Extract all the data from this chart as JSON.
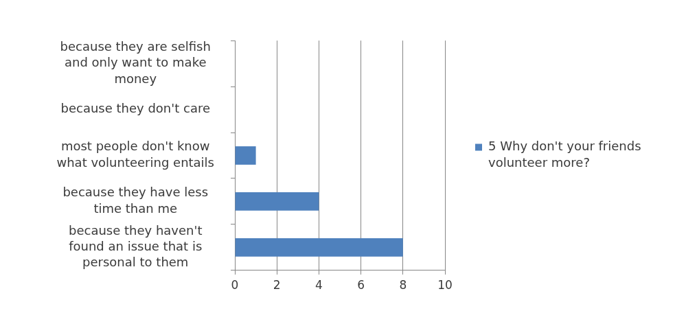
{
  "chart_data": {
    "type": "bar",
    "orientation": "horizontal",
    "categories": [
      "because they are selfish and only want to make money",
      "because they don't care",
      "most people don't know what volunteering entails",
      "because they have less time than me",
      "because they haven't found an issue that is personal to them"
    ],
    "series": [
      {
        "name": "5 Why don't your friends volunteer more?",
        "color": "#4f81bd",
        "values": [
          0,
          0,
          1,
          4,
          8
        ]
      }
    ],
    "xlim": [
      0,
      10
    ],
    "xticks": [
      0,
      2,
      4,
      6,
      8,
      10
    ],
    "grid": "x",
    "legend": "right"
  }
}
